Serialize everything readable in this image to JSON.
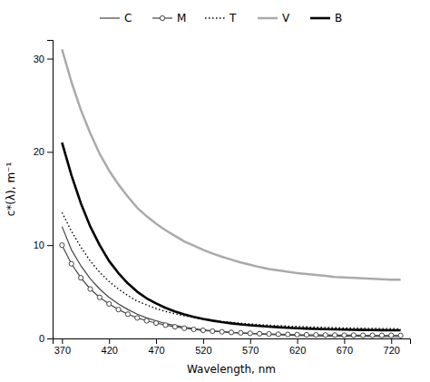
{
  "chart_data": {
    "type": "line",
    "x": [
      370,
      380,
      390,
      400,
      410,
      420,
      430,
      440,
      450,
      460,
      470,
      480,
      490,
      500,
      510,
      520,
      530,
      540,
      550,
      560,
      570,
      580,
      590,
      600,
      610,
      620,
      630,
      640,
      650,
      660,
      670,
      680,
      690,
      700,
      710,
      720,
      730
    ],
    "xlabel": "Wavelength, nm",
    "ylabel": "c*(λ), m⁻¹",
    "xlim": [
      360,
      740
    ],
    "ylim": [
      0,
      32
    ],
    "xticks": [
      370,
      420,
      470,
      520,
      570,
      620,
      670,
      720
    ],
    "yticks": [
      0,
      10,
      20,
      30
    ],
    "grid": false,
    "legend": "top",
    "series": [
      {
        "name": "C",
        "color": "#444444",
        "line_style": "solid",
        "values": [
          12.0,
          9.5,
          7.8,
          6.4,
          5.3,
          4.4,
          3.7,
          3.1,
          2.6,
          2.2,
          1.9,
          1.6,
          1.4,
          1.2,
          1.05,
          0.92,
          0.82,
          0.73,
          0.65,
          0.58,
          0.52,
          0.47,
          0.43,
          0.39,
          0.36,
          0.33,
          0.3,
          0.28,
          0.26,
          0.25,
          0.23,
          0.22,
          0.21,
          0.2,
          0.19,
          0.18,
          0.17
        ]
      },
      {
        "name": "M",
        "color": "#444444",
        "line_style": "solid",
        "marker": "circle",
        "values": [
          10.0,
          8.0,
          6.5,
          5.3,
          4.4,
          3.7,
          3.1,
          2.6,
          2.2,
          1.9,
          1.65,
          1.43,
          1.25,
          1.1,
          0.97,
          0.87,
          0.78,
          0.71,
          0.65,
          0.6,
          0.55,
          0.51,
          0.48,
          0.45,
          0.43,
          0.41,
          0.39,
          0.38,
          0.37,
          0.36,
          0.35,
          0.35,
          0.34,
          0.34,
          0.33,
          0.33,
          0.32
        ]
      },
      {
        "name": "T",
        "color": "#000000",
        "line_style": "dotted",
        "values": [
          13.5,
          11.5,
          9.8,
          8.3,
          7.1,
          6.1,
          5.3,
          4.6,
          4.0,
          3.6,
          3.2,
          2.9,
          2.65,
          2.43,
          2.24,
          2.08,
          1.94,
          1.82,
          1.72,
          1.63,
          1.55,
          1.48,
          1.42,
          1.37,
          1.32,
          1.28,
          1.24,
          1.21,
          1.18,
          1.15,
          1.13,
          1.11,
          1.09,
          1.07,
          1.06,
          1.05,
          1.03
        ]
      },
      {
        "name": "V",
        "color": "#aaaaaa",
        "line_style": "solid",
        "values": [
          31.0,
          27.5,
          24.5,
          22.0,
          19.8,
          18.0,
          16.5,
          15.2,
          14.0,
          13.1,
          12.3,
          11.6,
          11.0,
          10.4,
          9.95,
          9.5,
          9.1,
          8.75,
          8.45,
          8.15,
          7.9,
          7.65,
          7.45,
          7.3,
          7.15,
          7.0,
          6.9,
          6.8,
          6.7,
          6.6,
          6.55,
          6.5,
          6.45,
          6.4,
          6.35,
          6.3,
          6.3
        ]
      },
      {
        "name": "B",
        "color": "#000000",
        "line_style": "solid",
        "values": [
          21.0,
          17.5,
          14.5,
          12.0,
          10.0,
          8.3,
          7.0,
          5.9,
          5.0,
          4.3,
          3.75,
          3.28,
          2.9,
          2.58,
          2.32,
          2.1,
          1.91,
          1.75,
          1.62,
          1.51,
          1.41,
          1.33,
          1.26,
          1.2,
          1.15,
          1.1,
          1.06,
          1.02,
          0.99,
          0.97,
          0.95,
          0.93,
          0.91,
          0.9,
          0.89,
          0.88,
          0.87
        ]
      }
    ]
  }
}
